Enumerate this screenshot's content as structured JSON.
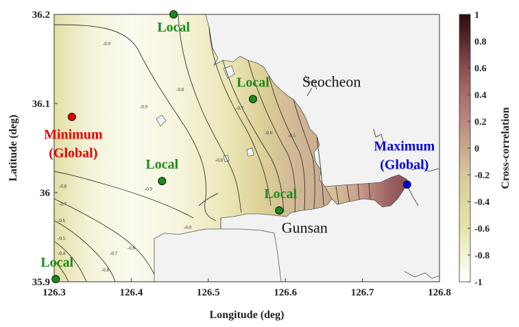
{
  "chart_data": {
    "type": "heatmap",
    "xlabel": "Longitude (deg)",
    "ylabel": "Latitude (deg)",
    "xlim": [
      126.3,
      126.8
    ],
    "ylim": [
      35.9,
      36.2
    ],
    "x_ticks": [
      "126.3",
      "126.4",
      "126.5",
      "126.6",
      "126.7",
      "126.8"
    ],
    "x_tick_values": [
      126.3,
      126.4,
      126.5,
      126.6,
      126.7,
      126.8
    ],
    "y_ticks": [
      "35.9",
      "36",
      "36.1",
      "36.2"
    ],
    "y_tick_values": [
      35.9,
      36.0,
      36.1,
      36.2
    ],
    "colorbar": {
      "label": "Cross-correlation",
      "range": [
        -1,
        1
      ],
      "ticks": [
        "1",
        "0.8",
        "0.6",
        "0.4",
        "0.2",
        "0",
        "-0.2",
        "-0.4",
        "-0.6",
        "-0.8",
        "-1"
      ],
      "tick_values": [
        1,
        0.8,
        0.6,
        0.4,
        0.2,
        0,
        -0.2,
        -0.4,
        -0.6,
        -0.8,
        -1
      ],
      "colors": [
        "#ffffff",
        "#f3f2d6",
        "#e6e4a8",
        "#d9c99a",
        "#c9a98c",
        "#b98880",
        "#a86e6c",
        "#8a4e50",
        "#6c3436",
        "#4a1e22",
        "#2a0c0e"
      ]
    },
    "places": [
      {
        "name": "Seocheon",
        "lon": 126.66,
        "lat": 36.119
      },
      {
        "name": "Gunsan",
        "lon": 126.625,
        "lat": 35.955
      }
    ],
    "points": [
      {
        "label": "Minimum\n(Global)",
        "line1": "Minimum",
        "line2": "(Global)",
        "lon": 126.323,
        "lat": 36.085,
        "color": "#e60000"
      },
      {
        "label": "Maximum\n(Global)",
        "line1": "Maximum",
        "line2": "(Global)",
        "lon": 126.758,
        "lat": 36.009,
        "color": "#0000e6"
      },
      {
        "label": "Local",
        "lon": 126.455,
        "lat": 36.2,
        "color": "#1a8a1a"
      },
      {
        "label": "Local",
        "lon": 126.558,
        "lat": 36.105,
        "color": "#1a8a1a"
      },
      {
        "label": "Local",
        "lon": 126.44,
        "lat": 36.013,
        "color": "#1a8a1a"
      },
      {
        "label": "Local",
        "lon": 126.592,
        "lat": 35.98,
        "color": "#1a8a1a"
      },
      {
        "label": "Local",
        "lon": 126.302,
        "lat": 35.903,
        "color": "#1a8a1a"
      }
    ],
    "contour_levels": [
      "-0.9",
      "-0.8",
      "-0.7",
      "-0.6",
      "-0.5",
      "-0.4"
    ]
  }
}
